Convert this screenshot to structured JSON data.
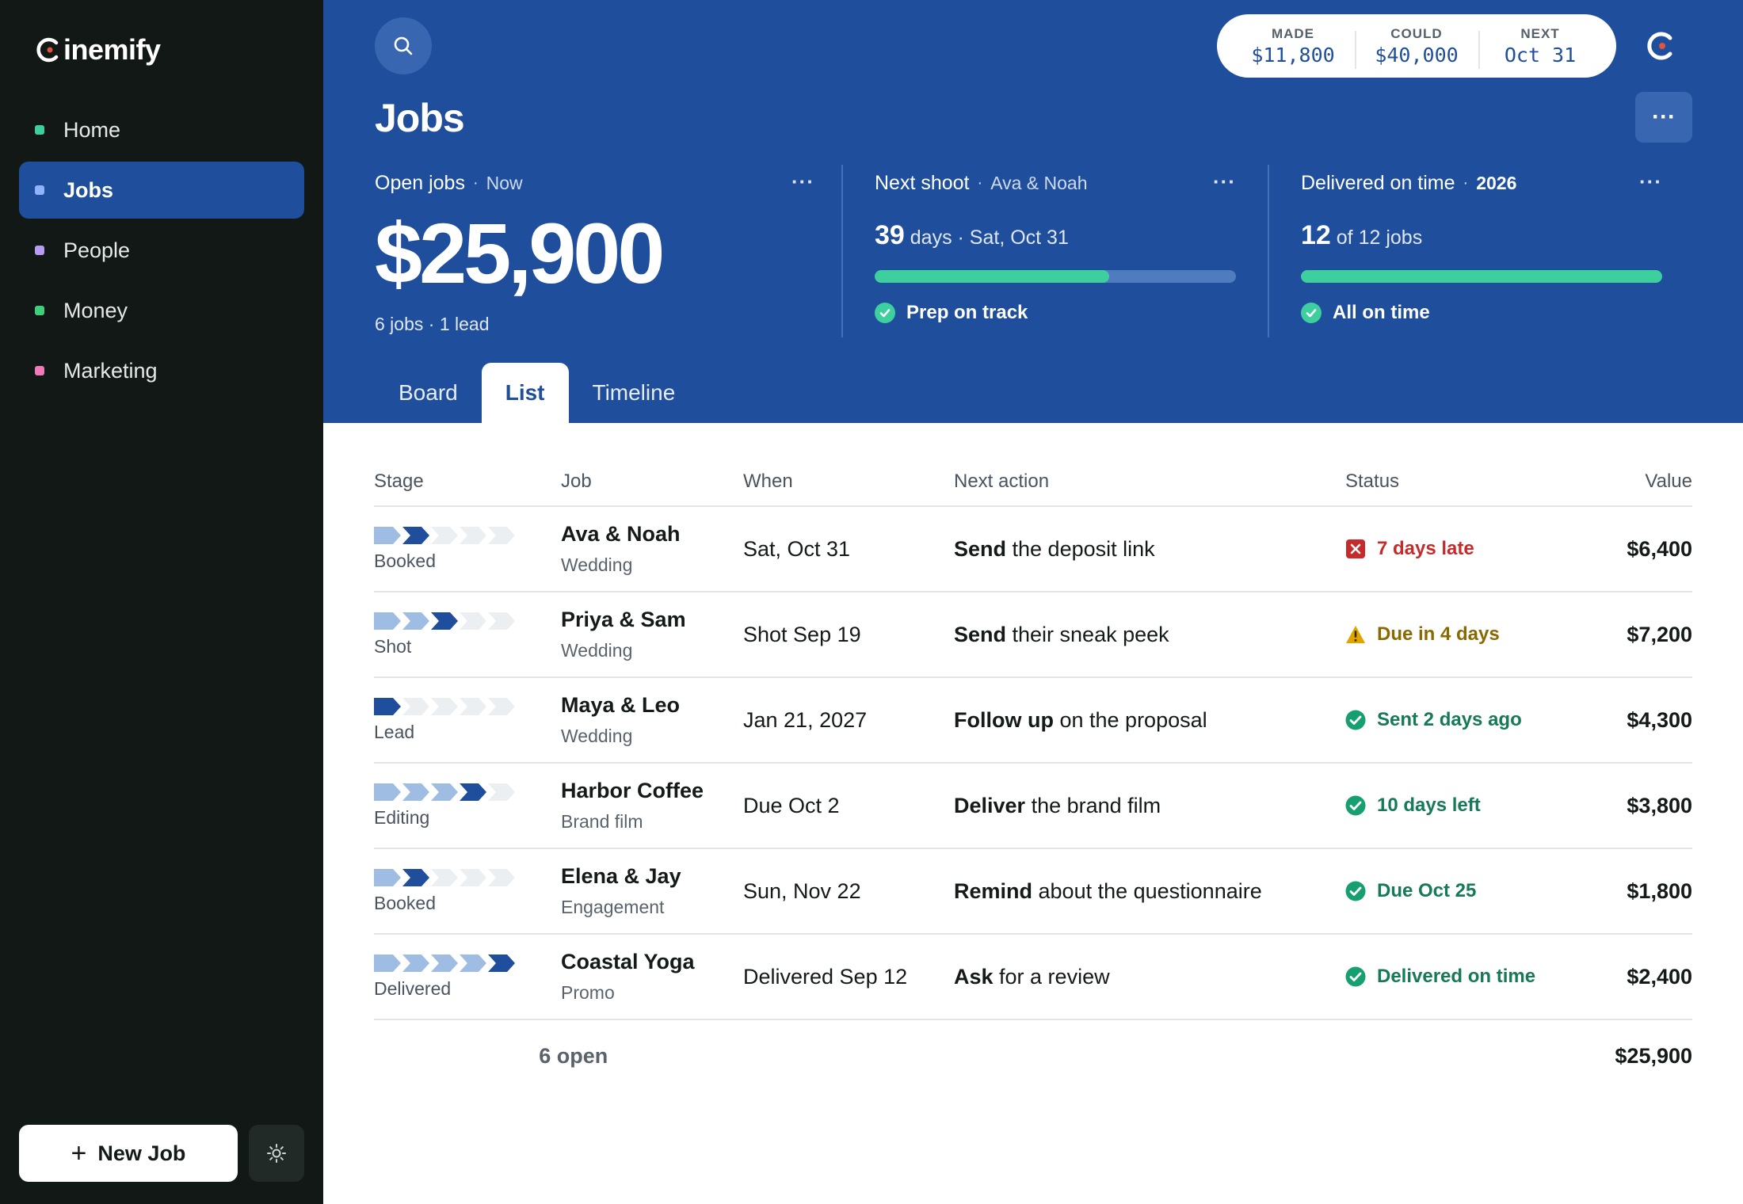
{
  "app": {
    "logo_text": "inemify"
  },
  "sidebar": {
    "items": [
      {
        "label": "Home",
        "dot_color": "#3dcf9e"
      },
      {
        "label": "Jobs",
        "dot_color": "#8fb4ff"
      },
      {
        "label": "People",
        "dot_color": "#b79cf2"
      },
      {
        "label": "Money",
        "dot_color": "#3dcf7a"
      },
      {
        "label": "Marketing",
        "dot_color": "#f07ab8"
      }
    ],
    "active_index": 1,
    "new_job_label": "New Job"
  },
  "header": {
    "stats": [
      {
        "label": "MADE",
        "value": "$11,800"
      },
      {
        "label": "COULD",
        "value": "$40,000"
      },
      {
        "label": "NEXT",
        "value": "Oct 31"
      }
    ],
    "title": "Jobs",
    "more_label": "···"
  },
  "cards": {
    "open_jobs": {
      "title": "Open jobs",
      "sub": "Now",
      "amount": "$25,900",
      "foot": "6 jobs · 1 lead"
    },
    "next_shoot": {
      "title": "Next shoot",
      "sub": "Ava & Noah",
      "metric_number": "39",
      "metric_text": "days · Sat, Oct 31",
      "progress": 0.65,
      "status": "Prep on track"
    },
    "delivered": {
      "title": "Delivered on time",
      "sub": "2026",
      "metric_number": "12",
      "metric_text": "of 12 jobs",
      "progress": 1.0,
      "status": "All on time"
    },
    "dots": "···"
  },
  "tabs": [
    {
      "label": "Board"
    },
    {
      "label": "List"
    },
    {
      "label": "Timeline"
    }
  ],
  "active_tab": 1,
  "table": {
    "headers": {
      "stage": "Stage",
      "job": "Job",
      "when": "When",
      "action": "Next action",
      "status": "Status",
      "value": "Value"
    },
    "rows": [
      {
        "stage": "Booked",
        "stage_step": 2,
        "name": "Ava & Noah",
        "type": "Wedding",
        "when": "Sat, Oct 31",
        "action_verb": "Send",
        "action_rest": " the deposit link",
        "status": "7 days late",
        "status_kind": "late",
        "value": "$6,400"
      },
      {
        "stage": "Shot",
        "stage_step": 3,
        "name": "Priya & Sam",
        "type": "Wedding",
        "when": "Shot Sep 19",
        "action_verb": "Send",
        "action_rest": " their sneak peek",
        "status": "Due in 4 days",
        "status_kind": "warn",
        "value": "$7,200"
      },
      {
        "stage": "Lead",
        "stage_step": 1,
        "name": "Maya & Leo",
        "type": "Wedding",
        "when": "Jan 21, 2027",
        "action_verb": "Follow up",
        "action_rest": " on the proposal",
        "status": "Sent 2 days ago",
        "status_kind": "ok",
        "value": "$4,300"
      },
      {
        "stage": "Editing",
        "stage_step": 4,
        "name": "Harbor Coffee",
        "type": "Brand film",
        "when": "Due Oct 2",
        "action_verb": "Deliver",
        "action_rest": " the brand film",
        "status": "10 days left",
        "status_kind": "ok",
        "value": "$3,800"
      },
      {
        "stage": "Booked",
        "stage_step": 2,
        "name": "Elena & Jay",
        "type": "Engagement",
        "when": "Sun, Nov 22",
        "action_verb": "Remind",
        "action_rest": " about the questionnaire",
        "status": "Due Oct 25",
        "status_kind": "ok",
        "value": "$1,800"
      },
      {
        "stage": "Delivered",
        "stage_step": 5,
        "name": "Coastal Yoga",
        "type": "Promo",
        "when": "Delivered Sep 12",
        "action_verb": "Ask",
        "action_rest": " for a review",
        "status": "Delivered on time",
        "status_kind": "ok",
        "value": "$2,400"
      }
    ],
    "footer": {
      "open": "6 open",
      "total": "$25,900"
    }
  },
  "colors": {
    "accent": "#1f4e9c",
    "late": "#c72a2a",
    "warn": "#8a6a00",
    "ok": "#157a55"
  }
}
